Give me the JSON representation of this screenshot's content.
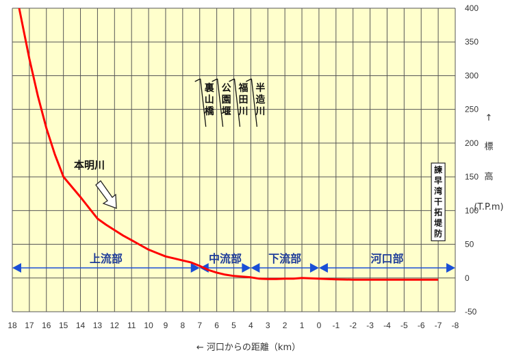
{
  "colors": {
    "plot_bg": "#ffffcc",
    "grid": "#555555",
    "profile": "#ff0000",
    "segment_arrow": "#1a4fd6",
    "segment_text": "#1f3d99"
  },
  "chart_data": {
    "type": "line",
    "title": "",
    "xlabel": "← 河口からの距離（km）",
    "ylabel": "↑ 標 高 (T.P.m)",
    "xlim": [
      18,
      -8
    ],
    "ylim": [
      -50,
      400
    ],
    "x_ticks": [
      "18",
      "17",
      "16",
      "15",
      "14",
      "13",
      "12",
      "11",
      "10",
      "9",
      "8",
      "7",
      "6",
      "5",
      "4",
      "3",
      "2",
      "1",
      "0",
      "-1",
      "-2",
      "-3",
      "-4",
      "-5",
      "-6",
      "-7",
      "-8"
    ],
    "y_ticks": [
      "400",
      "350",
      "300",
      "250",
      "200",
      "150",
      "100",
      "50",
      "0",
      "-50"
    ],
    "grid": true,
    "series": [
      {
        "name": "本明川",
        "x": [
          17.6,
          17,
          16.5,
          16,
          15.5,
          15,
          14.5,
          14,
          13.5,
          13,
          12.5,
          12,
          11.5,
          11,
          10.5,
          10,
          9.5,
          9,
          8.5,
          8,
          7.5,
          7,
          6.5,
          6,
          5.5,
          5,
          4.5,
          4,
          3.5,
          3,
          2.5,
          2,
          1.5,
          1,
          0.5,
          0,
          -0.5,
          -1,
          -2,
          -3,
          -4,
          -5,
          -6,
          -7
        ],
        "y": [
          400,
          325,
          270,
          222,
          183,
          150,
          135,
          120,
          104,
          88,
          79,
          71,
          63,
          56,
          49,
          42,
          37,
          32,
          29,
          26,
          23,
          18,
          12,
          8,
          5,
          3,
          2,
          1,
          -1,
          -1.5,
          -1.5,
          -1,
          -1,
          0,
          -0.5,
          -1,
          -1.5,
          -2,
          -2.5,
          -2.5,
          -2.5,
          -2.5,
          -2.5,
          -2.5
        ]
      }
    ],
    "segments": [
      {
        "label": "上流部",
        "from": 18,
        "to": 7
      },
      {
        "label": "中流部",
        "from": 7,
        "to": 4
      },
      {
        "label": "下流部",
        "from": 4,
        "to": 0
      },
      {
        "label": "河口部",
        "from": 0,
        "to": -8
      }
    ],
    "landmarks": [
      {
        "label": "裏山橋",
        "x": 6.8
      },
      {
        "label": "公園堰",
        "x": 5.8
      },
      {
        "label": "福田川",
        "x": 4.8
      },
      {
        "label": "半造川",
        "x": 3.8
      }
    ],
    "annotations": {
      "river_name": "本明川",
      "dam_label": "諫早湾干拓堤防",
      "dam_x": -7
    }
  }
}
